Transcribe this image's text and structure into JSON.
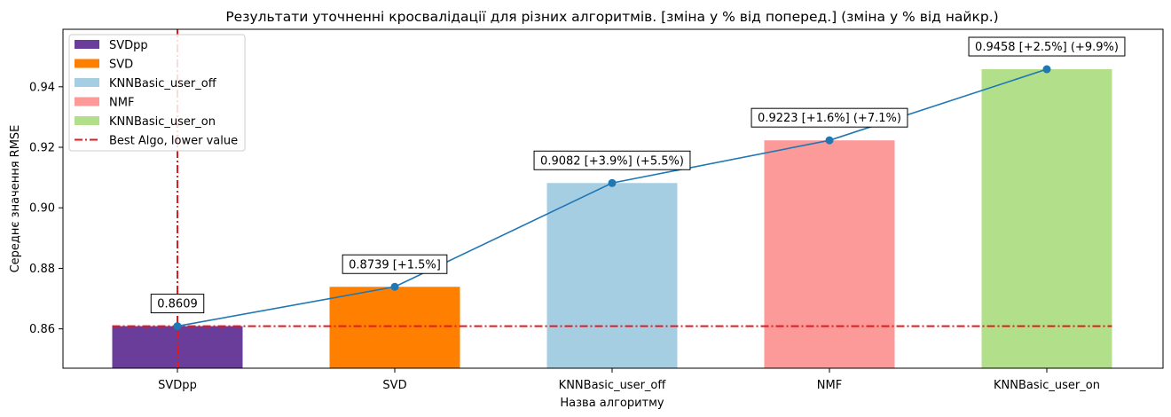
{
  "chart_data": {
    "type": "bar",
    "title": "Результати уточненні кросвалідації для різних алгоритмів. [зміна у % від поперед.] (зміна у % від найкр.)",
    "xlabel": "Назва алгоритму",
    "ylabel": "Середнє значення RMSE",
    "ylim": [
      0.847,
      0.959
    ],
    "yticks": [
      "0.86",
      "0.88",
      "0.90",
      "0.92",
      "0.94"
    ],
    "categories": [
      "SVDpp",
      "SVD",
      "KNNBasic_user_off",
      "NMF",
      "KNNBasic_user_on"
    ],
    "values": [
      0.8609,
      0.8739,
      0.9082,
      0.9223,
      0.9458
    ],
    "colors": [
      "#6a3d9a",
      "#ff7f00",
      "#a6cee3",
      "#fb9a99",
      "#b2df8a"
    ],
    "data_labels": [
      "0.8609",
      "0.8739 [+1.5%]",
      "0.9082 [+3.9%] (+5.5%)",
      "0.9223 [+1.6%] (+7.1%)",
      "0.9458 [+2.5%] (+9.9%)"
    ],
    "line_color": "#1f77b4",
    "best_line": {
      "label": "Best Algo, lower value",
      "value": 0.8609,
      "category_index": 0,
      "color": "#e31a1c"
    },
    "legend_position": "upper-left",
    "grid": false
  }
}
